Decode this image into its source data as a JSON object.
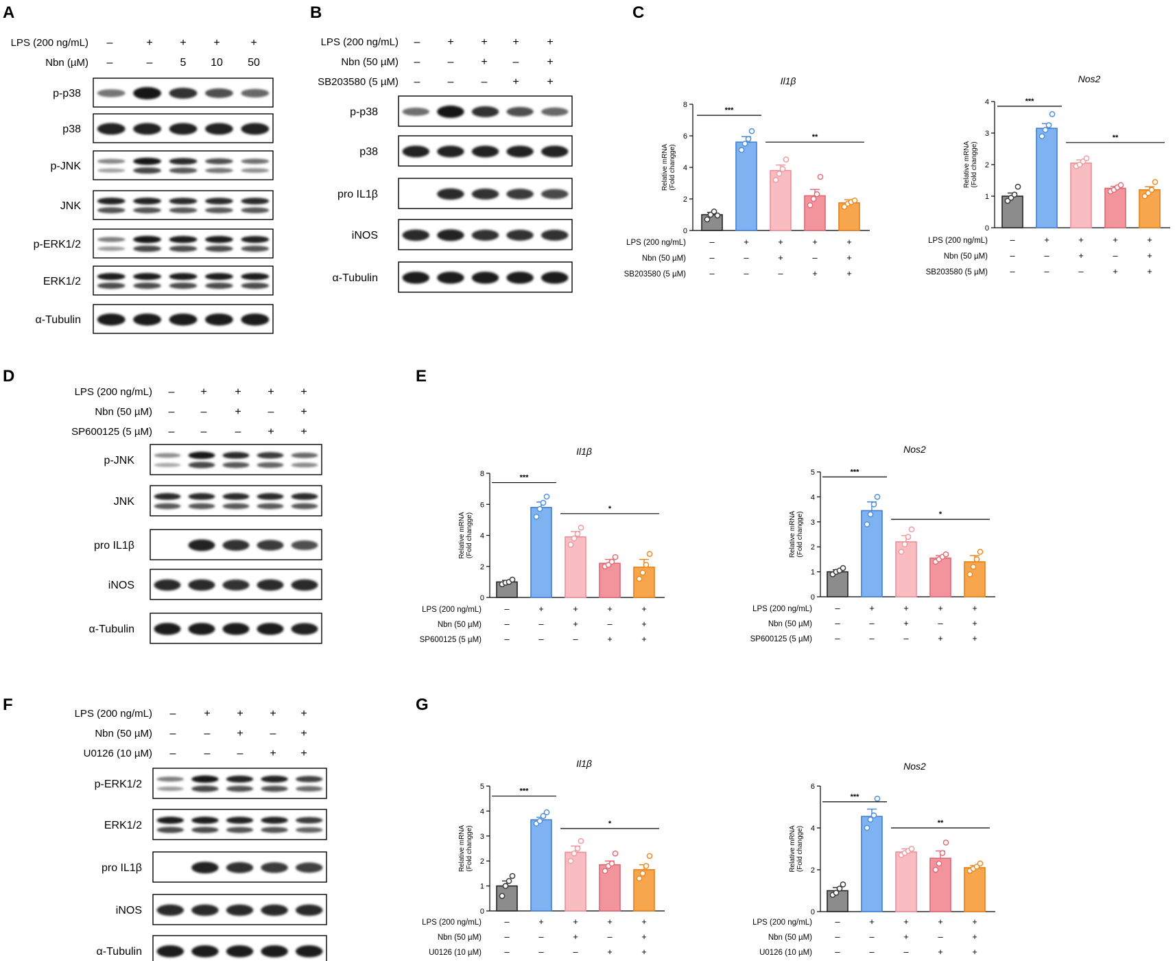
{
  "colors": {
    "control": "#8c8c8c",
    "lps": "#7fb2f0",
    "lps_nbn": "#f9bcc0",
    "lps_inhibitor": "#f2949c",
    "lps_nbn_inhibitor": "#f7a64d"
  },
  "blot_panels": [
    {
      "letter": "A",
      "conditions": [
        {
          "label": "LPS (200 ng/mL)",
          "values": [
            "–",
            "+",
            "+",
            "+",
            "+"
          ]
        },
        {
          "label": "Nbn (µM)",
          "values": [
            "–",
            "–",
            "5",
            "10",
            "50"
          ]
        }
      ],
      "rows": [
        {
          "label": "p-p38",
          "bands": 1,
          "intensity": [
            0.35,
            1.0,
            0.8,
            0.6,
            0.45
          ]
        },
        {
          "label": "p38",
          "bands": 1,
          "intensity": [
            0.9,
            0.9,
            0.9,
            0.9,
            0.9
          ]
        },
        {
          "label": "p-JNK",
          "bands": 2,
          "intensity": [
            0.25,
            1.0,
            0.85,
            0.6,
            0.4
          ]
        },
        {
          "label": "JNK",
          "bands": 2,
          "intensity": [
            0.9,
            0.9,
            0.85,
            0.85,
            0.85
          ]
        },
        {
          "label": "p-ERK1/2",
          "bands": 2,
          "intensity": [
            0.3,
            1.0,
            0.95,
            0.95,
            0.9
          ]
        },
        {
          "label": "ERK1/2",
          "bands": 2,
          "intensity": [
            0.95,
            0.95,
            0.95,
            0.95,
            0.95
          ]
        },
        {
          "label": "α-Tubulin",
          "bands": 1,
          "intensity": [
            0.95,
            0.95,
            0.95,
            0.95,
            0.95
          ]
        }
      ]
    },
    {
      "letter": "B",
      "conditions": [
        {
          "label": "LPS (200 ng/mL)",
          "values": [
            "–",
            "+",
            "+",
            "+",
            "+"
          ]
        },
        {
          "label": "Nbn (50 µM)",
          "values": [
            "–",
            "–",
            "+",
            "–",
            "+"
          ]
        },
        {
          "label": "SB203580 (5 µM)",
          "values": [
            "–",
            "–",
            "–",
            "+",
            "+"
          ]
        }
      ],
      "rows": [
        {
          "label": "p-p38",
          "bands": 1,
          "intensity": [
            0.4,
            1.0,
            0.8,
            0.6,
            0.45
          ]
        },
        {
          "label": "p38",
          "bands": 1,
          "intensity": [
            0.9,
            0.9,
            0.9,
            0.9,
            0.9
          ]
        },
        {
          "label": "pro IL1β",
          "bands": 1,
          "intensity": [
            0.0,
            0.85,
            0.8,
            0.75,
            0.65
          ]
        },
        {
          "label": "iNOS",
          "bands": 1,
          "intensity": [
            0.85,
            0.9,
            0.8,
            0.8,
            0.8
          ]
        },
        {
          "label": "α-Tubulin",
          "bands": 1,
          "intensity": [
            0.95,
            0.95,
            0.95,
            0.95,
            0.95
          ]
        }
      ]
    },
    {
      "letter": "D",
      "conditions": [
        {
          "label": "LPS (200 ng/mL)",
          "values": [
            "–",
            "+",
            "+",
            "+",
            "+"
          ]
        },
        {
          "label": "Nbn (50 µM)",
          "values": [
            "–",
            "–",
            "+",
            "–",
            "+"
          ]
        },
        {
          "label": "SP600125 (5 µM)",
          "values": [
            "–",
            "–",
            "–",
            "+",
            "+"
          ]
        }
      ],
      "rows": [
        {
          "label": "p-JNK",
          "bands": 2,
          "intensity": [
            0.2,
            1.0,
            0.85,
            0.75,
            0.45
          ]
        },
        {
          "label": "JNK",
          "bands": 2,
          "intensity": [
            0.85,
            0.85,
            0.85,
            0.85,
            0.85
          ]
        },
        {
          "label": "pro IL1β",
          "bands": 1,
          "intensity": [
            0.0,
            0.9,
            0.8,
            0.75,
            0.6
          ]
        },
        {
          "label": "iNOS",
          "bands": 1,
          "intensity": [
            0.85,
            0.85,
            0.8,
            0.85,
            0.85
          ]
        },
        {
          "label": "α-Tubulin",
          "bands": 1,
          "intensity": [
            0.95,
            0.95,
            0.95,
            0.95,
            0.9
          ]
        }
      ]
    },
    {
      "letter": "F",
      "conditions": [
        {
          "label": "LPS (200 ng/mL)",
          "values": [
            "–",
            "+",
            "+",
            "+",
            "+"
          ]
        },
        {
          "label": "Nbn (50 µM)",
          "values": [
            "–",
            "–",
            "+",
            "–",
            "+"
          ]
        },
        {
          "label": "U0126 (10 µM)",
          "values": [
            "–",
            "–",
            "–",
            "+",
            "+"
          ]
        }
      ],
      "rows": [
        {
          "label": "p-ERK1/2",
          "bands": 2,
          "intensity": [
            0.3,
            1.0,
            0.9,
            0.9,
            0.7
          ]
        },
        {
          "label": "ERK1/2",
          "bands": 2,
          "intensity": [
            0.95,
            0.95,
            0.9,
            0.9,
            0.75
          ]
        },
        {
          "label": "pro IL1β",
          "bands": 1,
          "intensity": [
            0.0,
            0.9,
            0.8,
            0.75,
            0.7
          ]
        },
        {
          "label": "iNOS",
          "bands": 1,
          "intensity": [
            0.85,
            0.85,
            0.85,
            0.85,
            0.85
          ]
        },
        {
          "label": "α-Tubulin",
          "bands": 1,
          "intensity": [
            0.95,
            0.95,
            0.95,
            0.95,
            0.95
          ]
        }
      ]
    }
  ],
  "chart_panels": [
    {
      "letter": "C"
    },
    {
      "letter": "E"
    },
    {
      "letter": "G"
    }
  ],
  "chart_data": [
    {
      "type": "bar",
      "panel": "C",
      "title": "Il1β",
      "ylabel": "Relative mRNA\n(Fold changge)",
      "ylim": [
        0,
        8
      ],
      "yticks": [
        0,
        2,
        4,
        6,
        8
      ],
      "values": [
        1.0,
        5.6,
        3.8,
        2.2,
        1.75
      ],
      "errors": [
        0.15,
        0.35,
        0.35,
        0.4,
        0.2
      ],
      "points": [
        [
          0.7,
          1.0,
          1.2,
          0.95
        ],
        [
          5.1,
          5.5,
          5.8,
          6.3
        ],
        [
          3.2,
          3.6,
          3.9,
          4.5
        ],
        [
          1.6,
          2.0,
          2.3,
          3.4
        ],
        [
          1.5,
          1.7,
          1.8,
          1.9
        ]
      ],
      "conditions": [
        {
          "label": "LPS (200 ng/mL)",
          "values": [
            "–",
            "+",
            "+",
            "+",
            "+"
          ]
        },
        {
          "label": "Nbn (50 µM)",
          "values": [
            "–",
            "–",
            "+",
            "–",
            "+"
          ]
        },
        {
          "label": "SB203580 (5 µM)",
          "values": [
            "–",
            "–",
            "–",
            "+",
            "+"
          ]
        }
      ],
      "significance": [
        {
          "from": 0,
          "to": 1,
          "y": 7.3,
          "label": "***"
        },
        {
          "from": 2,
          "to": 4,
          "y": 5.6,
          "label": "**"
        }
      ]
    },
    {
      "type": "bar",
      "panel": "C",
      "title": "Nos2",
      "ylabel": "Relative mRNA\n(Fold changge)",
      "ylim": [
        0,
        4
      ],
      "yticks": [
        0,
        1,
        2,
        3,
        4
      ],
      "values": [
        1.0,
        3.15,
        2.05,
        1.25,
        1.2
      ],
      "errors": [
        0.1,
        0.15,
        0.1,
        0.06,
        0.1
      ],
      "points": [
        [
          0.85,
          0.95,
          1.05,
          1.3
        ],
        [
          2.9,
          3.1,
          3.25,
          3.6
        ],
        [
          1.95,
          2.0,
          2.1,
          2.2
        ],
        [
          1.15,
          1.2,
          1.28,
          1.35
        ],
        [
          1.0,
          1.1,
          1.2,
          1.45
        ]
      ],
      "conditions": [
        {
          "label": "LPS (200 ng/mL)",
          "values": [
            "–",
            "+",
            "+",
            "+",
            "+"
          ]
        },
        {
          "label": "Nbn (50 µM)",
          "values": [
            "–",
            "–",
            "+",
            "–",
            "+"
          ]
        },
        {
          "label": "SB203580 (5 µM)",
          "values": [
            "–",
            "–",
            "–",
            "+",
            "+"
          ]
        }
      ],
      "significance": [
        {
          "from": 0,
          "to": 1,
          "y": 3.85,
          "label": "***"
        },
        {
          "from": 2,
          "to": 4,
          "y": 2.7,
          "label": "**"
        }
      ]
    },
    {
      "type": "bar",
      "panel": "E",
      "title": "Il1β",
      "ylabel": "Relative mRNA\n(Fold changge)",
      "ylim": [
        0,
        8
      ],
      "yticks": [
        0,
        2,
        4,
        6,
        8
      ],
      "values": [
        1.0,
        5.8,
        3.9,
        2.2,
        1.95
      ],
      "errors": [
        0.1,
        0.35,
        0.35,
        0.25,
        0.5
      ],
      "points": [
        [
          0.85,
          0.95,
          1.0,
          1.15
        ],
        [
          5.2,
          5.7,
          6.1,
          6.5
        ],
        [
          3.4,
          3.8,
          4.1,
          4.5
        ],
        [
          2.0,
          2.1,
          2.3,
          2.6
        ],
        [
          1.2,
          1.6,
          2.1,
          2.8
        ]
      ],
      "conditions": [
        {
          "label": "LPS (200 ng/mL)",
          "values": [
            "–",
            "+",
            "+",
            "+",
            "+"
          ]
        },
        {
          "label": "Nbn (50 µM)",
          "values": [
            "–",
            "–",
            "+",
            "–",
            "+"
          ]
        },
        {
          "label": "SP600125 (5 µM)",
          "values": [
            "–",
            "–",
            "–",
            "+",
            "+"
          ]
        }
      ],
      "significance": [
        {
          "from": 0,
          "to": 1,
          "y": 7.4,
          "label": "***"
        },
        {
          "from": 2,
          "to": 4,
          "y": 5.4,
          "label": "*"
        }
      ]
    },
    {
      "type": "bar",
      "panel": "E",
      "title": "Nos2",
      "ylabel": "Relative mRNA\n(Fold changge)",
      "ylim": [
        0,
        5
      ],
      "yticks": [
        0,
        1,
        2,
        3,
        4,
        5
      ],
      "values": [
        1.0,
        3.45,
        2.2,
        1.55,
        1.4
      ],
      "errors": [
        0.08,
        0.35,
        0.25,
        0.1,
        0.25
      ],
      "points": [
        [
          0.9,
          1.0,
          1.05,
          1.15
        ],
        [
          2.9,
          3.3,
          3.7,
          4.0
        ],
        [
          1.8,
          2.1,
          2.4,
          2.7
        ],
        [
          1.4,
          1.5,
          1.6,
          1.7
        ],
        [
          0.9,
          1.2,
          1.5,
          1.8
        ]
      ],
      "conditions": [
        {
          "label": "LPS (200 ng/mL)",
          "values": [
            "–",
            "+",
            "+",
            "+",
            "+"
          ]
        },
        {
          "label": "Nbn (50 µM)",
          "values": [
            "–",
            "–",
            "+",
            "–",
            "+"
          ]
        },
        {
          "label": "SP600125 (5 µM)",
          "values": [
            "–",
            "–",
            "–",
            "+",
            "+"
          ]
        }
      ],
      "significance": [
        {
          "from": 0,
          "to": 1,
          "y": 4.8,
          "label": "***"
        },
        {
          "from": 2,
          "to": 4,
          "y": 3.1,
          "label": "*"
        }
      ]
    },
    {
      "type": "bar",
      "panel": "G",
      "title": "Il1β",
      "ylabel": "Relative mRNA\n(Fold changge)",
      "ylim": [
        0,
        5
      ],
      "yticks": [
        0,
        1,
        2,
        3,
        4,
        5
      ],
      "values": [
        1.0,
        3.65,
        2.35,
        1.85,
        1.65
      ],
      "errors": [
        0.2,
        0.1,
        0.25,
        0.15,
        0.2
      ],
      "points": [
        [
          0.6,
          1.0,
          1.2,
          1.4
        ],
        [
          3.5,
          3.6,
          3.8,
          3.95
        ],
        [
          2.0,
          2.3,
          2.5,
          2.8
        ],
        [
          1.6,
          1.8,
          1.9,
          2.3
        ],
        [
          1.3,
          1.5,
          1.8,
          2.2
        ]
      ],
      "conditions": [
        {
          "label": "LPS (200 ng/mL)",
          "values": [
            "–",
            "+",
            "+",
            "+",
            "+"
          ]
        },
        {
          "label": "Nbn (50 µM)",
          "values": [
            "–",
            "–",
            "+",
            "–",
            "+"
          ]
        },
        {
          "label": "U0126 (10 µM)",
          "values": [
            "–",
            "–",
            "–",
            "+",
            "+"
          ]
        }
      ],
      "significance": [
        {
          "from": 0,
          "to": 1,
          "y": 4.6,
          "label": "***"
        },
        {
          "from": 2,
          "to": 4,
          "y": 3.3,
          "label": "*"
        }
      ]
    },
    {
      "type": "bar",
      "panel": "G",
      "title": "Nos2",
      "ylabel": "Relative mRNA\n(Fold changge)",
      "ylim": [
        0,
        6
      ],
      "yticks": [
        0,
        2,
        4,
        6
      ],
      "values": [
        1.0,
        4.55,
        2.85,
        2.55,
        2.1
      ],
      "errors": [
        0.15,
        0.35,
        0.15,
        0.35,
        0.1
      ],
      "points": [
        [
          0.8,
          0.9,
          1.1,
          1.3
        ],
        [
          4.0,
          4.4,
          4.6,
          5.4
        ],
        [
          2.7,
          2.8,
          2.9,
          3.0
        ],
        [
          2.0,
          2.3,
          2.8,
          3.3
        ],
        [
          1.95,
          2.05,
          2.15,
          2.3
        ]
      ],
      "conditions": [
        {
          "label": "LPS (200 ng/mL)",
          "values": [
            "–",
            "+",
            "+",
            "+",
            "+"
          ]
        },
        {
          "label": "Nbn (50 µM)",
          "values": [
            "–",
            "–",
            "+",
            "–",
            "+"
          ]
        },
        {
          "label": "U0126 (10 µM)",
          "values": [
            "–",
            "–",
            "–",
            "+",
            "+"
          ]
        }
      ],
      "significance": [
        {
          "from": 0,
          "to": 1,
          "y": 5.25,
          "label": "***"
        },
        {
          "from": 2,
          "to": 4,
          "y": 4.0,
          "label": "**"
        }
      ]
    }
  ]
}
